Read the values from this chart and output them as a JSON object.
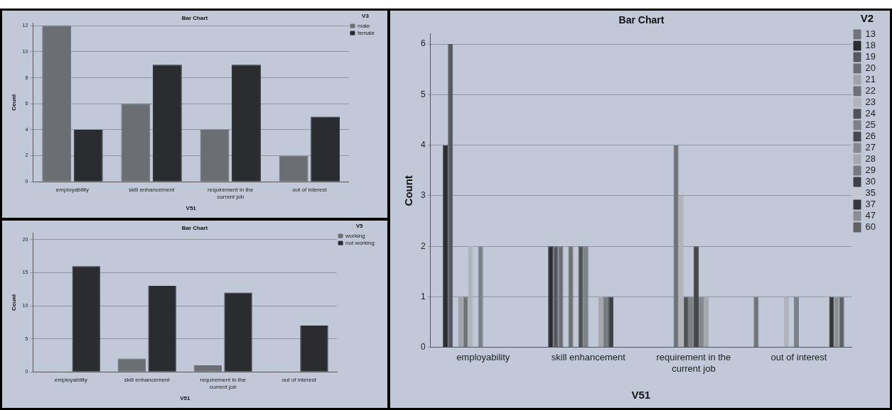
{
  "chart_data": [
    {
      "type": "bar",
      "title": "Bar Chart",
      "xlabel": "V51",
      "ylabel": "Count",
      "legend_title": "V3",
      "categories": [
        "employability",
        "skill enhancement",
        "requirement in the current job",
        "out of interest"
      ],
      "series": [
        {
          "name": "male",
          "color": "#6b6e73",
          "values": [
            12,
            6,
            4,
            2
          ]
        },
        {
          "name": "female",
          "color": "#2b2c30",
          "values": [
            4,
            9,
            9,
            5
          ]
        }
      ],
      "ylim": [
        0,
        12.2
      ],
      "yticks": [
        0,
        2,
        4,
        6,
        8,
        10,
        12
      ],
      "grid": "y",
      "legend": "top right"
    },
    {
      "type": "bar",
      "title": "Bar Chart",
      "xlabel": "V51",
      "ylabel": "Count",
      "legend_title": "V5",
      "categories": [
        "employability",
        "skill enhancement",
        "requirement in the current job",
        "out of interest"
      ],
      "series": [
        {
          "name": "working",
          "color": "#6b6e73",
          "values": [
            null,
            2,
            1,
            null
          ]
        },
        {
          "name": "not working",
          "color": "#2b2c30",
          "values": [
            16,
            13,
            12,
            7
          ]
        }
      ],
      "ylim": [
        0,
        21
      ],
      "yticks": [
        0,
        5,
        10,
        15,
        20
      ],
      "grid": "y",
      "legend": "top right"
    },
    {
      "type": "bar",
      "title": "Bar Chart",
      "xlabel": "V51",
      "ylabel": "Count",
      "legend_title": "V2",
      "categories": [
        "employability",
        "skill enhancement",
        "requirement in the current job",
        "out of interest"
      ],
      "series": [
        {
          "name": "13",
          "color": "#707378",
          "values": [
            null,
            null,
            null,
            1
          ]
        },
        {
          "name": "18",
          "color": "#2a2c30",
          "values": [
            4,
            2,
            null,
            null
          ]
        },
        {
          "name": "19",
          "color": "#55585e",
          "values": [
            6,
            2,
            null,
            null
          ]
        },
        {
          "name": "20",
          "color": "#6a6d72",
          "values": [
            null,
            2,
            null,
            null
          ]
        },
        {
          "name": "21",
          "color": "#a0a3a8",
          "values": [
            1,
            null,
            null,
            null
          ]
        },
        {
          "name": "22",
          "color": "#6e7176",
          "values": [
            1,
            2,
            4,
            null
          ]
        },
        {
          "name": "23",
          "color": "#b0b3b8",
          "values": [
            2,
            null,
            3,
            1
          ]
        },
        {
          "name": "24",
          "color": "#4f5257",
          "values": [
            null,
            2,
            1,
            null
          ]
        },
        {
          "name": "25",
          "color": "#7d8085",
          "values": [
            2,
            2,
            1,
            1
          ]
        },
        {
          "name": "26",
          "color": "#45484d",
          "values": [
            null,
            null,
            2,
            null
          ]
        },
        {
          "name": "27",
          "color": "#85888d",
          "values": [
            null,
            null,
            1,
            null
          ]
        },
        {
          "name": "28",
          "color": "#a5a8ad",
          "values": [
            null,
            1,
            1,
            null
          ]
        },
        {
          "name": "29",
          "color": "#76797e",
          "values": [
            null,
            1,
            null,
            null
          ]
        },
        {
          "name": "30",
          "color": "#3d4045",
          "values": [
            null,
            1,
            null,
            null
          ]
        },
        {
          "name": "35",
          "color": "#c5c8cc",
          "values": [
            null,
            null,
            null,
            1
          ]
        },
        {
          "name": "37",
          "color": "#34373b",
          "values": [
            null,
            null,
            null,
            1
          ]
        },
        {
          "name": "47",
          "color": "#8a8d92",
          "values": [
            null,
            null,
            null,
            1
          ]
        },
        {
          "name": "60",
          "color": "#5e6166",
          "values": [
            null,
            null,
            null,
            1
          ]
        }
      ],
      "ylim": [
        0,
        6.2
      ],
      "yticks": [
        0,
        1,
        2,
        3,
        4,
        5,
        6
      ],
      "grid": "y",
      "legend": "top right"
    }
  ]
}
